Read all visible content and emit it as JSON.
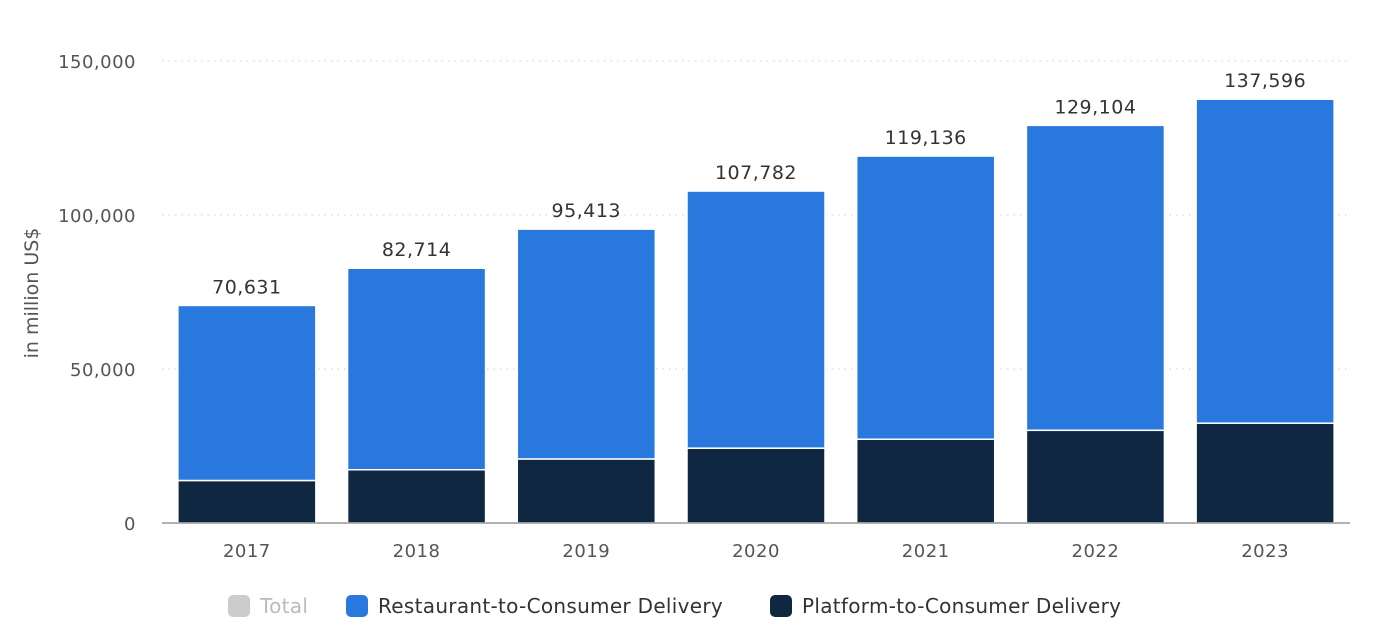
{
  "chart_data": {
    "type": "bar",
    "stacked": true,
    "categories": [
      "2017",
      "2018",
      "2019",
      "2020",
      "2021",
      "2022",
      "2023"
    ],
    "series": [
      {
        "name": "Platform-to-Consumer Delivery",
        "color": "#0f2741",
        "values": [
          13800,
          17300,
          20800,
          24300,
          27200,
          30100,
          32400
        ]
      },
      {
        "name": "Restaurant-to-Consumer Delivery",
        "color": "#2878de",
        "values": [
          56831,
          65414,
          74613,
          83482,
          91936,
          99004,
          105196
        ]
      }
    ],
    "totals": [
      70631,
      82714,
      95413,
      107782,
      119136,
      129104,
      137596
    ],
    "total_labels": [
      "70,631",
      "82,714",
      "95,413",
      "107,782",
      "119,136",
      "129,104",
      "137,596"
    ],
    "ylabel": "in million US$",
    "ylim": [
      0,
      150000
    ],
    "yticks": [
      0,
      50000,
      100000,
      150000
    ],
    "ytick_labels": [
      "0",
      "50,000",
      "100,000",
      "150,000"
    ],
    "grid": true,
    "legend_position": "bottom-center"
  },
  "legend": {
    "items": [
      {
        "label": "Total",
        "color": "#cccccc",
        "enabled": false
      },
      {
        "label": "Restaurant-to-Consumer Delivery",
        "color": "#2878de",
        "enabled": true
      },
      {
        "label": "Platform-to-Consumer Delivery",
        "color": "#0f2741",
        "enabled": true
      }
    ]
  }
}
